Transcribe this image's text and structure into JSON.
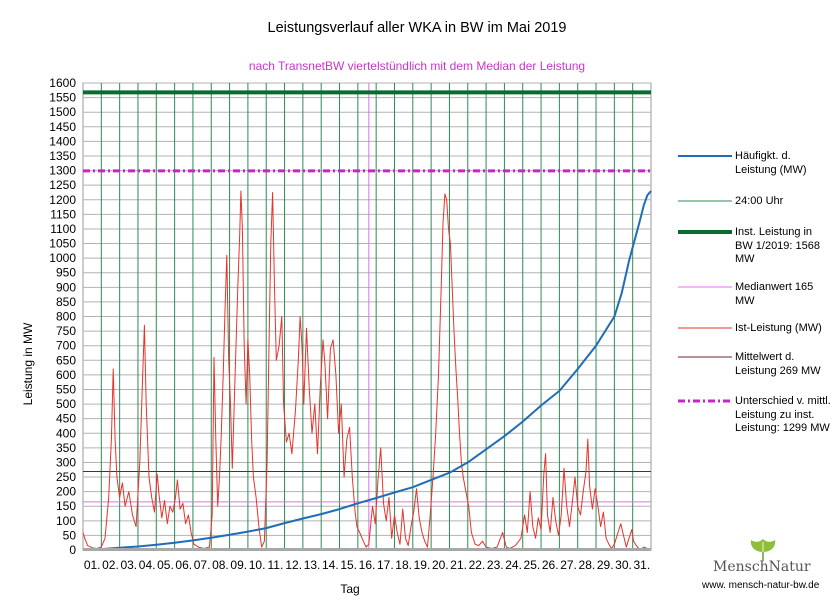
{
  "chart_data": {
    "type": "line",
    "title": "Leistungsverlauf aller WKA in BW im Mai 2019",
    "subtitle": "nach TransnetBW viertelstündlich mit dem Median der Leistung",
    "ylabel": "Leistung in MW",
    "xlabel": "Tag",
    "ylim": [
      0,
      1600
    ],
    "ytick_step": 50,
    "yticks": [
      "0",
      "50",
      "100",
      "150",
      "200",
      "250",
      "300",
      "350",
      "400",
      "450",
      "500",
      "550",
      "600",
      "650",
      "700",
      "750",
      "800",
      "850",
      "900",
      "950",
      "1000",
      "1050",
      "1100",
      "1150",
      "1200",
      "1250",
      "1300",
      "1350",
      "1400",
      "1450",
      "1500",
      "1550",
      "1600"
    ],
    "categories": [
      "01.",
      "02.",
      "03.",
      "04.",
      "05.",
      "06.",
      "07.",
      "08.",
      "09.",
      "10.",
      "11.",
      "12.",
      "13.",
      "14.",
      "15.",
      "16.",
      "17.",
      "18.",
      "19.",
      "20.",
      "21.",
      "22.",
      "23.",
      "24.",
      "25.",
      "26.",
      "27.",
      "28.",
      "29.",
      "30.",
      "31."
    ],
    "grid": true,
    "reference_lines": {
      "installed": 1568,
      "median": 165,
      "mean": 269,
      "difference": 1299
    },
    "series": [
      {
        "name": "Ist-Leistung (MW)",
        "color": "#e8332c",
        "points": [
          [
            0,
            60
          ],
          [
            0.1,
            40
          ],
          [
            0.25,
            15
          ],
          [
            0.5,
            8
          ],
          [
            0.75,
            5
          ],
          [
            1,
            10
          ],
          [
            1.2,
            40
          ],
          [
            1.4,
            180
          ],
          [
            1.55,
            380
          ],
          [
            1.65,
            620
          ],
          [
            1.75,
            380
          ],
          [
            1.85,
            250
          ],
          [
            2,
            180
          ],
          [
            2.15,
            230
          ],
          [
            2.3,
            150
          ],
          [
            2.5,
            200
          ],
          [
            2.7,
            120
          ],
          [
            2.9,
            80
          ],
          [
            3.1,
            300
          ],
          [
            3.25,
            580
          ],
          [
            3.35,
            770
          ],
          [
            3.45,
            500
          ],
          [
            3.6,
            250
          ],
          [
            3.75,
            180
          ],
          [
            3.9,
            130
          ],
          [
            4.05,
            260
          ],
          [
            4.15,
            190
          ],
          [
            4.3,
            110
          ],
          [
            4.45,
            170
          ],
          [
            4.6,
            90
          ],
          [
            4.75,
            150
          ],
          [
            4.9,
            130
          ],
          [
            5.05,
            180
          ],
          [
            5.15,
            240
          ],
          [
            5.3,
            140
          ],
          [
            5.45,
            160
          ],
          [
            5.6,
            90
          ],
          [
            5.75,
            120
          ],
          [
            5.9,
            60
          ],
          [
            6.05,
            20
          ],
          [
            6.3,
            10
          ],
          [
            6.6,
            5
          ],
          [
            6.9,
            10
          ],
          [
            7.05,
            120
          ],
          [
            7.15,
            660
          ],
          [
            7.25,
            380
          ],
          [
            7.35,
            150
          ],
          [
            7.45,
            250
          ],
          [
            7.55,
            400
          ],
          [
            7.65,
            600
          ],
          [
            7.75,
            820
          ],
          [
            7.85,
            1010
          ],
          [
            7.95,
            650
          ],
          [
            8.05,
            500
          ],
          [
            8.15,
            280
          ],
          [
            8.3,
            600
          ],
          [
            8.45,
            900
          ],
          [
            8.55,
            1080
          ],
          [
            8.62,
            1230
          ],
          [
            8.7,
            1100
          ],
          [
            8.8,
            700
          ],
          [
            8.9,
            500
          ],
          [
            9.0,
            720
          ],
          [
            9.1,
            600
          ],
          [
            9.2,
            380
          ],
          [
            9.3,
            250
          ],
          [
            9.45,
            180
          ],
          [
            9.6,
            80
          ],
          [
            9.75,
            10
          ],
          [
            9.9,
            30
          ],
          [
            10.05,
            300
          ],
          [
            10.15,
            700
          ],
          [
            10.25,
            1050
          ],
          [
            10.35,
            1225
          ],
          [
            10.45,
            900
          ],
          [
            10.55,
            650
          ],
          [
            10.7,
            700
          ],
          [
            10.85,
            800
          ],
          [
            10.95,
            500
          ],
          [
            11.1,
            370
          ],
          [
            11.25,
            400
          ],
          [
            11.4,
            330
          ],
          [
            11.6,
            480
          ],
          [
            11.75,
            650
          ],
          [
            11.85,
            800
          ],
          [
            11.95,
            700
          ],
          [
            12.05,
            500
          ],
          [
            12.2,
            760
          ],
          [
            12.35,
            550
          ],
          [
            12.5,
            400
          ],
          [
            12.65,
            500
          ],
          [
            12.8,
            330
          ],
          [
            12.95,
            560
          ],
          [
            13.1,
            720
          ],
          [
            13.2,
            640
          ],
          [
            13.35,
            450
          ],
          [
            13.5,
            690
          ],
          [
            13.65,
            720
          ],
          [
            13.8,
            600
          ],
          [
            13.95,
            400
          ],
          [
            14.1,
            500
          ],
          [
            14.25,
            250
          ],
          [
            14.4,
            380
          ],
          [
            14.55,
            420
          ],
          [
            14.7,
            250
          ],
          [
            14.85,
            130
          ],
          [
            14.95,
            80
          ],
          [
            15.1,
            60
          ],
          [
            15.3,
            30
          ],
          [
            15.45,
            10
          ],
          [
            15.6,
            20
          ],
          [
            15.8,
            150
          ],
          [
            15.95,
            90
          ],
          [
            16.1,
            240
          ],
          [
            16.25,
            350
          ],
          [
            16.4,
            160
          ],
          [
            16.55,
            100
          ],
          [
            16.7,
            180
          ],
          [
            16.85,
            40
          ],
          [
            17.0,
            120
          ],
          [
            17.15,
            60
          ],
          [
            17.3,
            20
          ],
          [
            17.45,
            140
          ],
          [
            17.6,
            40
          ],
          [
            17.75,
            15
          ],
          [
            17.9,
            80
          ],
          [
            18.05,
            130
          ],
          [
            18.2,
            210
          ],
          [
            18.35,
            110
          ],
          [
            18.5,
            60
          ],
          [
            18.65,
            30
          ],
          [
            18.8,
            10
          ],
          [
            18.95,
            120
          ],
          [
            19.1,
            250
          ],
          [
            19.25,
            400
          ],
          [
            19.4,
            600
          ],
          [
            19.55,
            900
          ],
          [
            19.65,
            1120
          ],
          [
            19.75,
            1220
          ],
          [
            19.85,
            1200
          ],
          [
            19.95,
            1100
          ],
          [
            20.05,
            1050
          ],
          [
            20.15,
            900
          ],
          [
            20.25,
            750
          ],
          [
            20.35,
            620
          ],
          [
            20.45,
            520
          ],
          [
            20.55,
            400
          ],
          [
            20.65,
            300
          ],
          [
            20.75,
            250
          ],
          [
            20.9,
            200
          ],
          [
            21.05,
            150
          ],
          [
            21.2,
            60
          ],
          [
            21.4,
            20
          ],
          [
            21.6,
            15
          ],
          [
            21.8,
            30
          ],
          [
            22.0,
            10
          ],
          [
            22.3,
            5
          ],
          [
            22.6,
            10
          ],
          [
            22.9,
            60
          ],
          [
            23.1,
            10
          ],
          [
            23.3,
            5
          ],
          [
            23.6,
            15
          ],
          [
            23.9,
            40
          ],
          [
            24.1,
            120
          ],
          [
            24.25,
            60
          ],
          [
            24.4,
            200
          ],
          [
            24.55,
            80
          ],
          [
            24.7,
            40
          ],
          [
            24.85,
            110
          ],
          [
            25.0,
            70
          ],
          [
            25.15,
            260
          ],
          [
            25.25,
            330
          ],
          [
            25.35,
            120
          ],
          [
            25.5,
            60
          ],
          [
            25.65,
            180
          ],
          [
            25.8,
            100
          ],
          [
            25.95,
            50
          ],
          [
            26.1,
            120
          ],
          [
            26.25,
            280
          ],
          [
            26.4,
            150
          ],
          [
            26.55,
            80
          ],
          [
            26.7,
            160
          ],
          [
            26.85,
            250
          ],
          [
            27.0,
            150
          ],
          [
            27.15,
            120
          ],
          [
            27.3,
            200
          ],
          [
            27.45,
            270
          ],
          [
            27.55,
            380
          ],
          [
            27.65,
            220
          ],
          [
            27.8,
            140
          ],
          [
            27.95,
            210
          ],
          [
            28.1,
            150
          ],
          [
            28.25,
            80
          ],
          [
            28.4,
            130
          ],
          [
            28.55,
            40
          ],
          [
            28.7,
            20
          ],
          [
            28.85,
            5
          ],
          [
            29.0,
            20
          ],
          [
            29.2,
            60
          ],
          [
            29.35,
            90
          ],
          [
            29.5,
            50
          ],
          [
            29.65,
            10
          ],
          [
            29.8,
            40
          ],
          [
            29.95,
            70
          ],
          [
            30.05,
            30
          ],
          [
            30.2,
            15
          ],
          [
            30.4,
            0
          ],
          [
            30.6,
            10
          ],
          [
            30.8,
            5
          ],
          [
            31,
            0
          ]
        ]
      },
      {
        "name": "Häufigkt. d. Leistung (MW)",
        "color": "#1f6db7",
        "points": [
          [
            0,
            0
          ],
          [
            1,
            3
          ],
          [
            2,
            8
          ],
          [
            3,
            12
          ],
          [
            4,
            18
          ],
          [
            5,
            25
          ],
          [
            6,
            33
          ],
          [
            7,
            42
          ],
          [
            8,
            52
          ],
          [
            9,
            63
          ],
          [
            10,
            75
          ],
          [
            11,
            92
          ],
          [
            12,
            108
          ],
          [
            13,
            123
          ],
          [
            14,
            140
          ],
          [
            15,
            160
          ],
          [
            16,
            178
          ],
          [
            17,
            197
          ],
          [
            18,
            215
          ],
          [
            19,
            240
          ],
          [
            20,
            265
          ],
          [
            21,
            300
          ],
          [
            22,
            345
          ],
          [
            23,
            390
          ],
          [
            24,
            440
          ],
          [
            25,
            495
          ],
          [
            26,
            545
          ],
          [
            27,
            620
          ],
          [
            28,
            700
          ],
          [
            29,
            800
          ],
          [
            29.4,
            880
          ],
          [
            29.8,
            990
          ],
          [
            30.1,
            1060
          ],
          [
            30.4,
            1130
          ],
          [
            30.6,
            1180
          ],
          [
            30.8,
            1215
          ],
          [
            31,
            1230
          ]
        ]
      }
    ]
  },
  "legend": {
    "frequency": "Häufigkt. d. Leistung (MW)",
    "midnight": "24:00 Uhr",
    "installed": "Inst. Leistung in BW 1/2019: 1568 MW",
    "median": "Medianwert 165 MW",
    "actual": "Ist-Leistung (MW)",
    "mean": "Mittelwert d. Leistung 269 MW",
    "difference": "Unterschied v. mittl. Leistung zu inst. Leistung: 1299 MW"
  },
  "logo": {
    "name": "MenschNatur",
    "url": "www. mensch-natur-bw.de"
  },
  "colors": {
    "installed": "#0b6b2e",
    "midnight": "#2e8b57",
    "median": "#e070e8",
    "mean": "#7a1c2e",
    "difference": "#cc22cc",
    "actual": "#e8332c",
    "frequency": "#1f6db7",
    "subtitle": "#cc33cc"
  }
}
